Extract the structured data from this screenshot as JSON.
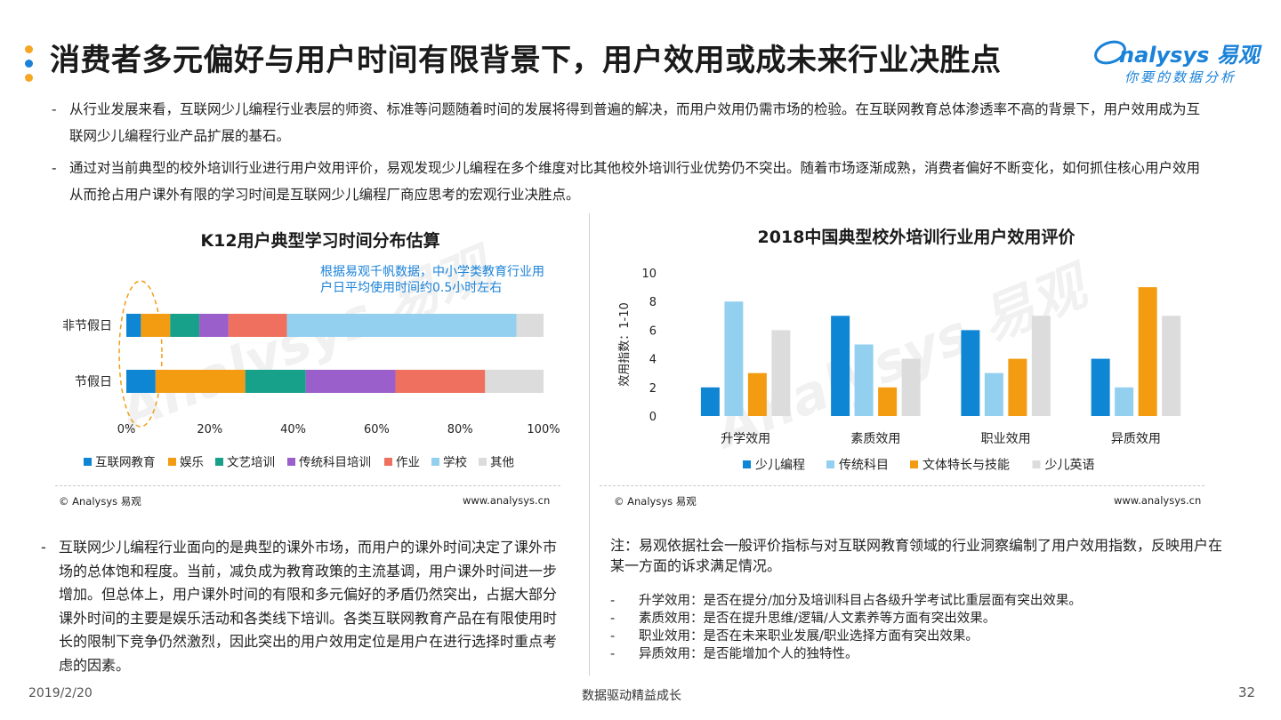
{
  "header": {
    "title": "消费者多元偏好与用户时间有限背景下，用户效用或成未来行业决胜点",
    "logo_text": "nalysys 易观",
    "logo_tagline": "你要的数据分析",
    "accent_colors": [
      "#f5a623",
      "#1a82d8",
      "#f5a623"
    ]
  },
  "intro": [
    {
      "dash": "-",
      "text": "从行业发展来看，互联网少儿编程行业表层的师资、标准等问题随着时间的发展将得到普遍的解决，而用户效用仍需市场的检验。在互联网教育总体渗透率不高的背景下，用户效用成为互联网少儿编程行业产品扩展的基石。"
    },
    {
      "dash": "-",
      "text": "通过对当前典型的校外培训行业进行用户效用评价，易观发现少儿编程在多个维度对比其他校外培训行业优势仍不突出。随着市场逐渐成熟，消费者偏好不断变化，如何抓住核心用户效用从而抢占用户课外有限的学习时间是互联网少儿编程厂商应思考的宏观行业决胜点。"
    }
  ],
  "chart_data": [
    {
      "type": "bar",
      "orientation": "horizontal-stacked-percent",
      "title": "K12用户典型学习时间分布估算",
      "annotation": "根据易观千帆数据，中小学类教育行业用户日平均使用时间约0.5小时左右",
      "categories": [
        "非节假日",
        "节假日"
      ],
      "x_ticks": [
        "0%",
        "20%",
        "40%",
        "60%",
        "80%",
        "100%"
      ],
      "xlim": [
        0,
        100
      ],
      "legend_position": "bottom",
      "series": [
        {
          "name": "互联网教育",
          "color": "#0e86d4",
          "values": [
            3.5,
            7
          ]
        },
        {
          "name": "娱乐",
          "color": "#f39c12",
          "values": [
            7,
            21.5
          ]
        },
        {
          "name": "文艺培训",
          "color": "#17a08a",
          "values": [
            7,
            14.5
          ]
        },
        {
          "name": "传统科目培训",
          "color": "#9b5fcb",
          "values": [
            7,
            21.5
          ]
        },
        {
          "name": "作业",
          "color": "#f07060",
          "values": [
            14,
            21.5
          ]
        },
        {
          "name": "学校",
          "color": "#93d0f0",
          "values": [
            55,
            0
          ]
        },
        {
          "name": "其他",
          "color": "#dcdcdc",
          "values": [
            6.5,
            14
          ]
        }
      ],
      "source_left": "© Analysys 易观",
      "source_right": "www.analysys.cn"
    },
    {
      "type": "bar",
      "orientation": "vertical-grouped",
      "title": "2018中国典型校外培训行业用户效用评价",
      "ylabel": "效用指数：1-10",
      "ylim": [
        0,
        10
      ],
      "y_ticks": [
        "0",
        "2",
        "4",
        "6",
        "8",
        "10"
      ],
      "categories": [
        "升学效用",
        "素质效用",
        "职业效用",
        "异质效用"
      ],
      "legend_position": "bottom",
      "series": [
        {
          "name": "少儿编程",
          "color": "#0e86d4",
          "values": [
            2,
            7,
            6,
            4
          ]
        },
        {
          "name": "传统科目",
          "color": "#93d0f0",
          "values": [
            8,
            5,
            3,
            2
          ]
        },
        {
          "name": "文体特长与技能",
          "color": "#f39c12",
          "values": [
            3,
            2,
            4,
            9
          ]
        },
        {
          "name": "少儿英语",
          "color": "#dcdcdc",
          "values": [
            6,
            4,
            7,
            7
          ]
        }
      ],
      "source_left": "© Analysys 易观",
      "source_right": "www.analysys.cn"
    }
  ],
  "lower_left": {
    "dash": "-",
    "text": "互联网少儿编程行业面向的是典型的课外市场，而用户的课外时间决定了课外市场的总体饱和程度。当前，减负成为教育政策的主流基调，用户课外时间进一步增加。但总体上，用户课外时间的有限和多元偏好的矛盾仍然突出，占据大部分课外时间的主要是娱乐活动和各类线下培训。各类互联网教育产品在有限使用时长的限制下竞争仍然激烈，因此突出的用户效用定位是用户在进行选择时重点考虑的因素。"
  },
  "lower_right": {
    "note": "注：易观依据社会一般评价指标与对互联网教育领域的行业洞察编制了用户效用指数，反映用户在某一方面的诉求满足情况。",
    "definitions": [
      {
        "dash": "-",
        "text": "升学效用：是否在提分/加分及培训科目占各级升学考试比重层面有突出效果。"
      },
      {
        "dash": "-",
        "text": "素质效用：是否在提升思维/逻辑/人文素养等方面有突出效果。"
      },
      {
        "dash": "-",
        "text": "职业效用：是否在未来职业发展/职业选择方面有突出效果。"
      },
      {
        "dash": "-",
        "text": "异质效用：是否能增加个人的独特性。"
      }
    ]
  },
  "footer": {
    "date": "2019/2/20",
    "slogan": "数据驱动精益成长",
    "page": "32"
  }
}
